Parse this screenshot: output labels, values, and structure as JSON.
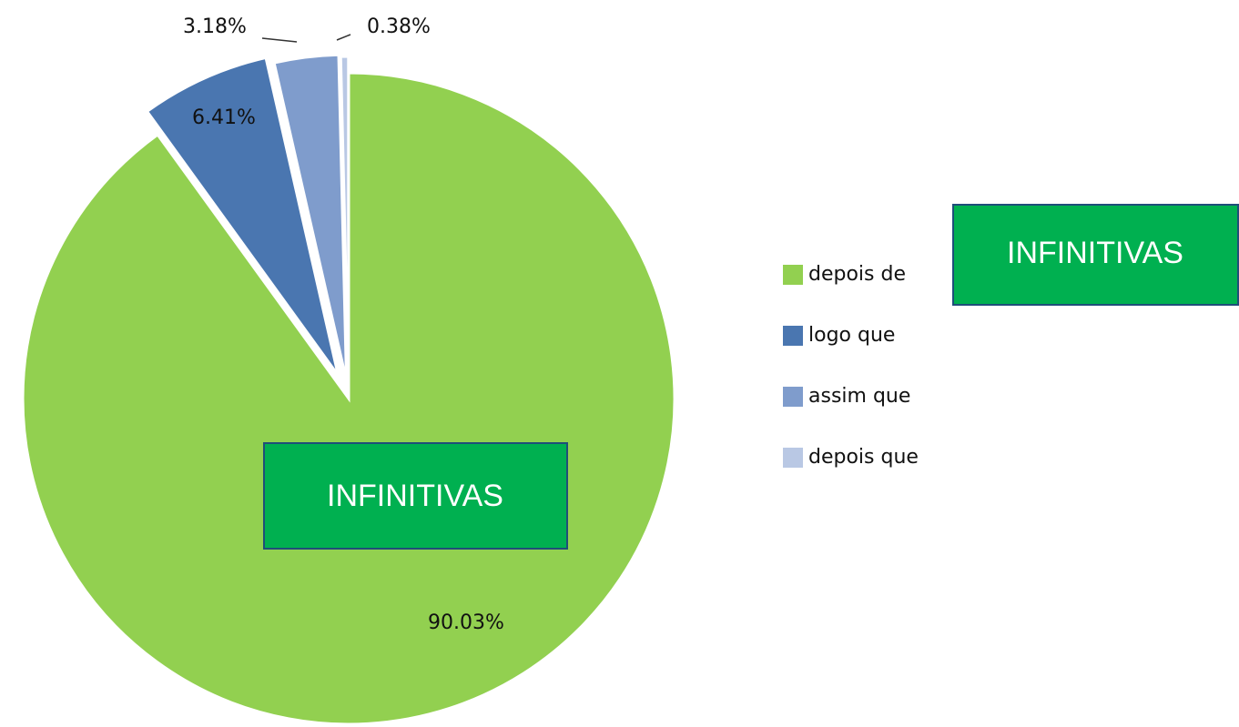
{
  "chart_data": {
    "type": "pie",
    "categories": [
      "depois de",
      "logo que",
      "assim que",
      "depois que"
    ],
    "values": [
      90.03,
      6.41,
      3.18,
      0.38
    ],
    "value_labels": [
      "90.03%",
      "6.41%",
      "3.18%",
      "0.38%"
    ],
    "colors": [
      "#92d050",
      "#4a76b0",
      "#7f9ccc",
      "#b9c8e4"
    ],
    "legend": "right",
    "annotations": [
      "INFINITIVAS",
      "INFINITIVAS"
    ]
  }
}
